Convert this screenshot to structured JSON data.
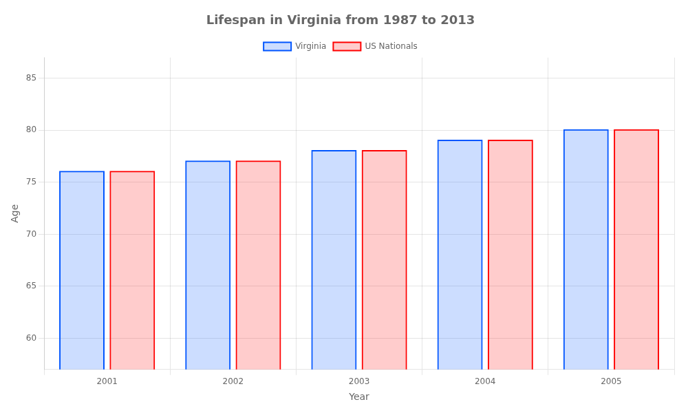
{
  "chart_data": {
    "type": "bar",
    "title": "Lifespan in Virginia from 1987 to 2013",
    "xlabel": "Year",
    "ylabel": "Age",
    "categories": [
      "2001",
      "2002",
      "2003",
      "2004",
      "2005"
    ],
    "series": [
      {
        "name": "Virginia",
        "color": "#0055ff",
        "values": [
          76.1,
          77.1,
          78.1,
          79.1,
          80.1
        ]
      },
      {
        "name": "US Nationals",
        "color": "#ff0000",
        "values": [
          76.1,
          77.1,
          78.1,
          79.1,
          80.1
        ]
      }
    ],
    "ylim": [
      57,
      87
    ],
    "yticks": [
      60,
      65,
      70,
      75,
      80,
      85
    ],
    "grid": true,
    "legend": "top"
  }
}
